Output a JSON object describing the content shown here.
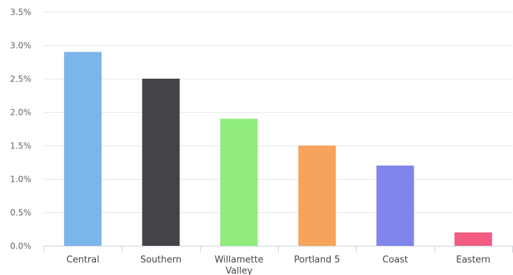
{
  "chart_data": {
    "type": "bar",
    "title": "",
    "xlabel": "",
    "ylabel": "",
    "categories": [
      "Central",
      "Southern",
      "Willamette Valley",
      "Portland 5",
      "Coast",
      "Eastern"
    ],
    "category_lines": [
      [
        "Central"
      ],
      [
        "Southern"
      ],
      [
        "Willamette",
        "Valley"
      ],
      [
        "Portland 5"
      ],
      [
        "Coast"
      ],
      [
        "Eastern"
      ]
    ],
    "values": [
      2.9,
      2.5,
      1.9,
      1.5,
      1.2,
      0.2
    ],
    "colors": [
      "#7cb5ec",
      "#434348",
      "#90ed7d",
      "#f7a35c",
      "#8085e9",
      "#f15c80"
    ],
    "ylim": [
      0,
      3.5
    ],
    "yticks": [
      0,
      0.5,
      1.0,
      1.5,
      2.0,
      2.5,
      3.0,
      3.5
    ],
    "ytick_labels": [
      "0.0%",
      "0.5%",
      "1.0%",
      "1.5%",
      "2.0%",
      "2.5%",
      "3.0%",
      "3.5%"
    ],
    "grid": true,
    "legend": "none"
  }
}
